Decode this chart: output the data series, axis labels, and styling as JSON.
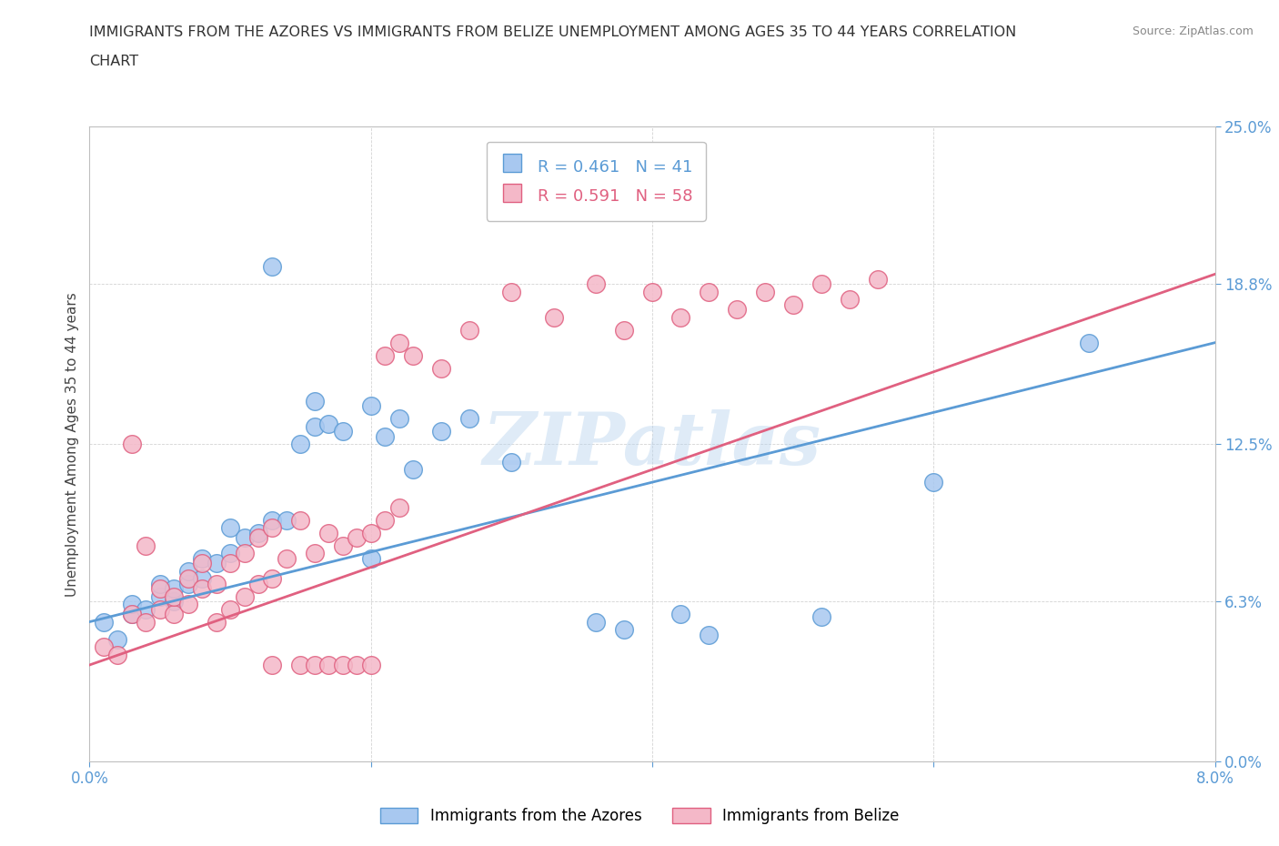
{
  "title_line1": "IMMIGRANTS FROM THE AZORES VS IMMIGRANTS FROM BELIZE UNEMPLOYMENT AMONG AGES 35 TO 44 YEARS CORRELATION",
  "title_line2": "CHART",
  "source_text": "Source: ZipAtlas.com",
  "ylabel": "Unemployment Among Ages 35 to 44 years",
  "xlim": [
    0.0,
    0.08
  ],
  "ylim": [
    0.0,
    0.25
  ],
  "yticks": [
    0.0,
    0.063,
    0.125,
    0.188,
    0.25
  ],
  "ytick_labels": [
    "0.0%",
    "6.3%",
    "12.5%",
    "18.8%",
    "25.0%"
  ],
  "xticks": [
    0.0,
    0.02,
    0.04,
    0.06,
    0.08
  ],
  "xtick_labels_bottom": [
    "0.0%",
    "",
    "",
    "",
    "8.0%"
  ],
  "azores_color": "#a8c8f0",
  "azores_edge_color": "#5b9bd5",
  "belize_color": "#f4b8c8",
  "belize_edge_color": "#e06080",
  "azores_line_color": "#5b9bd5",
  "belize_line_color": "#e06080",
  "azores_R": 0.461,
  "azores_N": 41,
  "belize_R": 0.591,
  "belize_N": 58,
  "watermark": "ZIPatlas",
  "legend_label_azores": "Immigrants from the Azores",
  "legend_label_belize": "Immigrants from Belize",
  "azores_x": [
    0.001,
    0.002,
    0.003,
    0.003,
    0.004,
    0.005,
    0.005,
    0.006,
    0.006,
    0.007,
    0.007,
    0.008,
    0.008,
    0.009,
    0.01,
    0.01,
    0.011,
    0.012,
    0.013,
    0.014,
    0.015,
    0.016,
    0.017,
    0.018,
    0.02,
    0.021,
    0.022,
    0.023,
    0.025,
    0.027,
    0.03,
    0.013,
    0.016,
    0.036,
    0.038,
    0.042,
    0.044,
    0.052,
    0.06,
    0.071,
    0.02
  ],
  "azores_y": [
    0.055,
    0.048,
    0.058,
    0.062,
    0.06,
    0.065,
    0.07,
    0.063,
    0.068,
    0.07,
    0.075,
    0.072,
    0.08,
    0.078,
    0.082,
    0.092,
    0.088,
    0.09,
    0.095,
    0.095,
    0.125,
    0.132,
    0.133,
    0.13,
    0.14,
    0.128,
    0.135,
    0.115,
    0.13,
    0.135,
    0.118,
    0.195,
    0.142,
    0.055,
    0.052,
    0.058,
    0.05,
    0.057,
    0.11,
    0.165,
    0.08
  ],
  "belize_x": [
    0.001,
    0.002,
    0.003,
    0.003,
    0.004,
    0.004,
    0.005,
    0.005,
    0.006,
    0.006,
    0.007,
    0.007,
    0.008,
    0.008,
    0.009,
    0.009,
    0.01,
    0.01,
    0.011,
    0.011,
    0.012,
    0.012,
    0.013,
    0.013,
    0.014,
    0.015,
    0.016,
    0.017,
    0.018,
    0.019,
    0.02,
    0.021,
    0.022,
    0.013,
    0.015,
    0.016,
    0.017,
    0.018,
    0.019,
    0.02,
    0.021,
    0.022,
    0.023,
    0.025,
    0.027,
    0.03,
    0.033,
    0.036,
    0.038,
    0.04,
    0.042,
    0.044,
    0.046,
    0.048,
    0.05,
    0.052,
    0.054,
    0.056
  ],
  "belize_y": [
    0.045,
    0.042,
    0.125,
    0.058,
    0.055,
    0.085,
    0.06,
    0.068,
    0.058,
    0.065,
    0.062,
    0.072,
    0.068,
    0.078,
    0.055,
    0.07,
    0.06,
    0.078,
    0.065,
    0.082,
    0.07,
    0.088,
    0.072,
    0.092,
    0.08,
    0.095,
    0.082,
    0.09,
    0.085,
    0.088,
    0.09,
    0.095,
    0.1,
    0.038,
    0.038,
    0.038,
    0.038,
    0.038,
    0.038,
    0.038,
    0.16,
    0.165,
    0.16,
    0.155,
    0.17,
    0.185,
    0.175,
    0.188,
    0.17,
    0.185,
    0.175,
    0.185,
    0.178,
    0.185,
    0.18,
    0.188,
    0.182,
    0.19
  ]
}
